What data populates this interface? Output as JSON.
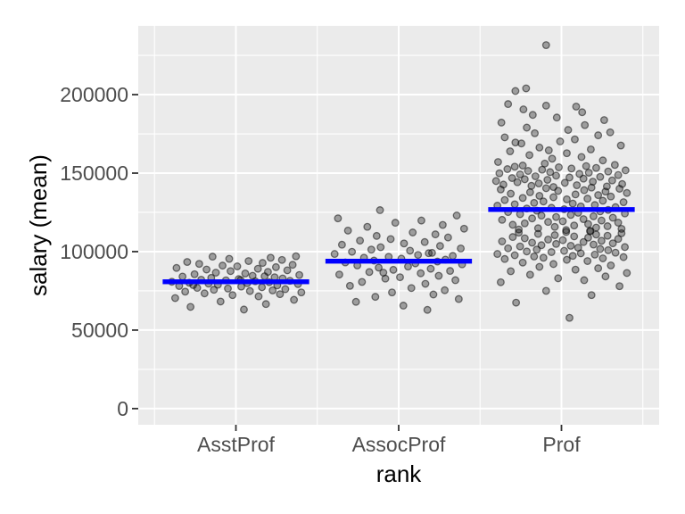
{
  "chart_data": {
    "type": "scatter",
    "subtype": "jittered points with mean crossbars (ggplot2 gray theme)",
    "title": "",
    "xlabel": "rank",
    "ylabel": "salary (mean)",
    "categories": [
      "AsstProf",
      "AssocProf",
      "Prof"
    ],
    "x_units": {
      "centers": [
        1,
        2,
        3
      ],
      "range": [
        0.4,
        3.6
      ],
      "minor": [
        0.5,
        1.5,
        2.5,
        3.5
      ]
    },
    "ylim": [
      -10300,
      243800
    ],
    "y_ticks": [
      0,
      50000,
      100000,
      150000,
      200000
    ],
    "y_tick_labels": [
      "0",
      "50000",
      "100000",
      "150000",
      "200000"
    ],
    "y_minor": [
      25000,
      75000,
      125000,
      175000,
      225000
    ],
    "grid": true,
    "legend": "none",
    "jitter_amplitude_units": 0.41,
    "crossbar": {
      "color": "#0000FF",
      "width_units": 0.9,
      "thickness_px": 5.4
    },
    "group_means": [
      {
        "category": "AsstProf",
        "mean": 80800
      },
      {
        "category": "AssocProf",
        "mean": 93900
      },
      {
        "category": "Prof",
        "mean": 126800
      }
    ],
    "groups": [
      {
        "name": "AsstProf",
        "mean": 80800,
        "jitter": [
          0.12,
          -0.68,
          0.45,
          -0.23,
          0.87,
          -0.91,
          0.34,
          -0.05,
          0.66,
          -0.47,
          0.98,
          -0.76,
          0.21,
          0.55,
          -0.33,
          0.74,
          -0.12,
          -0.58,
          0.39,
          0.08,
          -0.85,
          0.62,
          -0.27,
          0.93,
          -0.41,
          0.17,
          -0.7,
          0.5,
          -0.96,
          0.29,
          0.81,
          -0.15,
          -0.52,
          0.04,
          0.7,
          -0.37,
          0.58,
          -0.8,
          0.25,
          0.95,
          -0.62,
          0.14,
          -0.3,
          0.48,
          -0.08,
          0.77,
          -0.44,
          0.33,
          -0.89,
          0.6,
          0.02,
          -0.2,
          0.85,
          -0.55,
          0.4,
          -0.73,
          0.19,
          0.69,
          -0.1,
          0.52,
          -0.35,
          0.9,
          -0.64,
          0.07,
          0.43
        ],
        "salaries": [
          63100,
          64800,
          66600,
          68200,
          69300,
          70400,
          71500,
          72300,
          72900,
          73400,
          74000,
          74500,
          74900,
          75300,
          75700,
          76100,
          76500,
          76900,
          77300,
          77700,
          78100,
          78500,
          78900,
          79300,
          79600,
          79900,
          80200,
          80500,
          80800,
          81100,
          81400,
          81700,
          82100,
          82500,
          82900,
          83300,
          83700,
          84100,
          84600,
          85100,
          85600,
          86100,
          86600,
          87100,
          87600,
          88100,
          88600,
          89100,
          89600,
          90100,
          90600,
          91100,
          91600,
          92200,
          92800,
          93400,
          94000,
          94700,
          95400,
          96100,
          96800,
          97032,
          78700,
          81900,
          84300
        ]
      },
      {
        "name": "AssocProf",
        "mean": 93900,
        "jitter": [
          0.43,
          0.07,
          -0.64,
          0.9,
          -0.35,
          0.52,
          -0.1,
          0.69,
          0.19,
          -0.73,
          0.4,
          -0.55,
          0.85,
          -0.2,
          0.02,
          0.6,
          -0.89,
          0.33,
          -0.44,
          0.77,
          -0.08,
          0.48,
          -0.3,
          0.14,
          -0.62,
          0.95,
          0.25,
          -0.8,
          0.58,
          -0.37,
          0.7,
          0.04,
          -0.52,
          -0.15,
          0.81,
          0.29,
          -0.96,
          0.5,
          -0.7,
          0.17,
          -0.41,
          0.93,
          -0.27,
          0.62,
          -0.85,
          0.08,
          0.39,
          -0.58,
          -0.12,
          0.74,
          -0.33,
          0.55,
          0.21,
          -0.76,
          0.98,
          -0.47,
          0.66,
          -0.05,
          0.34,
          -0.91,
          0.87,
          -0.23,
          0.45,
          -0.28
        ],
        "salaries": [
          62884,
          65600,
          68000,
          69800,
          71200,
          72700,
          74000,
          75400,
          76800,
          78200,
          79500,
          80700,
          81800,
          82800,
          83700,
          84600,
          85400,
          86200,
          87000,
          87700,
          88400,
          89100,
          89800,
          90500,
          91200,
          91900,
          92500,
          93100,
          93700,
          94300,
          94900,
          95500,
          96100,
          96700,
          97300,
          97900,
          98500,
          99200,
          99900,
          100600,
          101300,
          102000,
          102800,
          103600,
          104400,
          105200,
          106100,
          107000,
          108000,
          109000,
          110000,
          111000,
          112200,
          113400,
          114600,
          115800,
          117000,
          118400,
          119800,
          121200,
          123000,
          86600,
          99000,
          126431
        ]
      },
      {
        "name": "Prof",
        "mean": 126800,
        "jitter": [
          0.12,
          -0.68,
          0.45,
          -0.23,
          0.87,
          -0.91,
          0.34,
          -0.05,
          0.66,
          -0.47,
          0.98,
          -0.76,
          0.21,
          0.55,
          -0.33,
          0.74,
          -0.12,
          -0.58,
          0.39,
          0.08,
          -0.85,
          0.62,
          -0.27,
          0.93,
          -0.41,
          0.17,
          -0.7,
          0.5,
          -0.96,
          0.29,
          0.81,
          -0.15,
          -0.52,
          0.04,
          0.7,
          -0.37,
          0.58,
          -0.8,
          0.25,
          0.95,
          -0.62,
          0.14,
          -0.3,
          0.48,
          -0.08,
          0.77,
          -0.44,
          0.33,
          -0.89,
          0.6,
          0.02,
          -0.2,
          0.85,
          -0.55,
          0.4,
          -0.73,
          0.19,
          0.69,
          -0.1,
          0.52,
          -0.35,
          0.9,
          -0.64,
          0.07,
          0.43,
          0.43,
          0.07,
          -0.64,
          0.9,
          -0.35,
          0.52,
          -0.1,
          0.69,
          0.19,
          -0.73,
          0.4,
          -0.55,
          0.85,
          -0.2,
          0.02,
          0.6,
          -0.89,
          0.33,
          -0.44,
          0.77,
          -0.08,
          0.48,
          -0.3,
          0.14,
          -0.62,
          0.95,
          0.25,
          -0.8,
          0.58,
          -0.37,
          0.7,
          0.04,
          -0.52,
          -0.15,
          0.81,
          0.29,
          -0.96,
          0.5,
          -0.7,
          0.17,
          -0.41,
          0.93,
          -0.27,
          0.62,
          -0.85,
          0.08,
          0.39,
          -0.58,
          -0.12,
          0.74,
          -0.33,
          0.55,
          0.21,
          -0.76,
          0.98,
          -0.47,
          0.66,
          -0.05,
          0.34,
          -0.91,
          0.87,
          -0.23,
          0.45,
          -0.12,
          0.68,
          -0.45,
          0.23,
          -0.87,
          0.91,
          -0.34,
          0.05,
          -0.66,
          0.47,
          -0.98,
          0.76,
          -0.21,
          -0.55,
          0.33,
          -0.74,
          0.12,
          0.58,
          -0.39,
          -0.08,
          0.85,
          -0.62,
          0.27,
          -0.93,
          0.41,
          -0.17,
          0.7,
          -0.5,
          0.96,
          -0.29,
          -0.81,
          0.15,
          0.52,
          -0.04,
          -0.7,
          0.37,
          -0.58,
          0.8,
          -0.25,
          -0.95,
          0.62,
          -0.14,
          0.3,
          -0.48,
          0.08,
          -0.77,
          0.44,
          -0.33,
          0.89,
          -0.6,
          -0.02,
          0.2,
          -0.85,
          0.55,
          -0.4,
          0.73,
          -0.19,
          -0.69,
          0.1,
          -0.52,
          0.35,
          -0.9,
          0.64,
          -0.07,
          -0.43,
          0.31,
          -0.57,
          0.22,
          -0.23,
          -0.8,
          -0.69,
          -0.53,
          -0.23
        ],
        "salaries": [
          57800,
          67500,
          72300,
          75000,
          78000,
          80500,
          81800,
          83000,
          84200,
          85300,
          86400,
          87500,
          88500,
          89400,
          90300,
          91200,
          92100,
          93000,
          94000,
          94800,
          95300,
          95700,
          96100,
          96500,
          96900,
          97300,
          97700,
          98100,
          98500,
          98900,
          99300,
          99700,
          100100,
          100500,
          100900,
          101300,
          101700,
          102100,
          102500,
          102900,
          103300,
          103700,
          104100,
          104500,
          104900,
          105300,
          105700,
          106100,
          106500,
          106900,
          107300,
          107700,
          108100,
          108500,
          108900,
          109300,
          109700,
          110100,
          110500,
          110900,
          111300,
          111700,
          112100,
          112500,
          112900,
          113300,
          113700,
          114100,
          114500,
          114900,
          115300,
          115750,
          116200,
          116650,
          117100,
          117550,
          118000,
          118450,
          118900,
          119350,
          119800,
          120250,
          120700,
          121150,
          121600,
          122050,
          122500,
          122950,
          123400,
          123850,
          124300,
          124750,
          125200,
          125650,
          126100,
          126550,
          127000,
          127450,
          127900,
          128350,
          128800,
          129250,
          129700,
          130150,
          130600,
          131050,
          131500,
          131950,
          132400,
          132850,
          133300,
          133750,
          134200,
          134650,
          135100,
          135550,
          136000,
          136450,
          136900,
          137350,
          137800,
          138250,
          138700,
          139150,
          139600,
          140050,
          140400,
          140780,
          141160,
          141540,
          141920,
          142300,
          142680,
          143060,
          143440,
          143820,
          144200,
          144580,
          144960,
          145340,
          145720,
          146100,
          146480,
          146860,
          147240,
          147620,
          148000,
          148380,
          148760,
          149140,
          149520,
          149900,
          150280,
          150660,
          151040,
          151420,
          151800,
          152180,
          152560,
          152940,
          153320,
          153700,
          154080,
          154460,
          154840,
          155220,
          156100,
          157100,
          158100,
          159200,
          160300,
          161500,
          162700,
          163900,
          165100,
          166300,
          167600,
          168900,
          170200,
          171500,
          172800,
          174100,
          175400,
          176000,
          164500,
          169500,
          177500,
          179000,
          180600,
          182200,
          183800,
          185400,
          187100,
          188800,
          190600,
          192400,
          193000,
          194000,
          202300,
          204000,
          231545
        ]
      }
    ],
    "point_style": {
      "fill": "#000000",
      "fill_opacity": 0.33,
      "stroke_opacity": 0.5
    }
  },
  "colors": {
    "background": "#FFFFFF",
    "panel": "#EBEBEB",
    "grid": "#FFFFFF",
    "tick_mark": "#333333",
    "tick_label": "#4D4D4D",
    "axis_title": "#000000",
    "crossbar": "#0000FF"
  }
}
